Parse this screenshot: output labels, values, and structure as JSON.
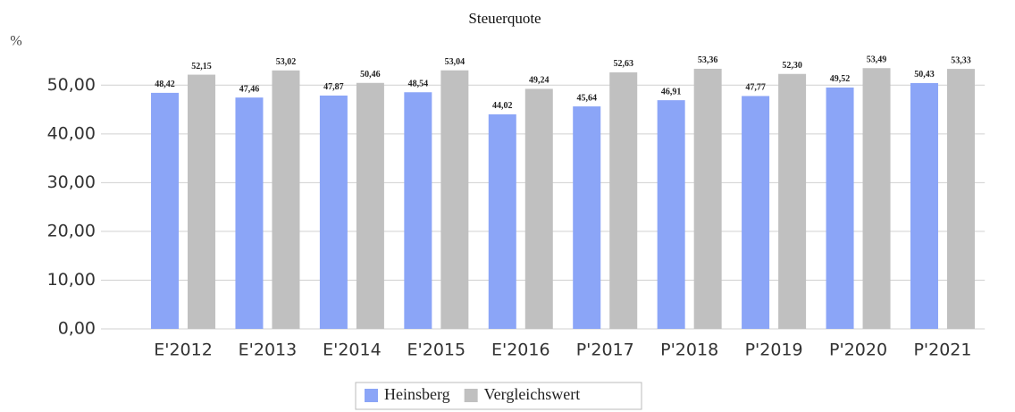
{
  "chart_data": {
    "type": "bar",
    "title": "Steuerquote",
    "y_label": "%",
    "categories": [
      "E'2012",
      "E'2013",
      "E'2014",
      "E'2015",
      "E'2016",
      "P'2017",
      "P'2018",
      "P'2019",
      "P'2020",
      "P'2021"
    ],
    "series": [
      {
        "name": "Heinsberg",
        "color": "#8ba5f7",
        "values": [
          48.42,
          47.46,
          47.87,
          48.54,
          44.02,
          45.64,
          46.91,
          47.77,
          49.52,
          50.43
        ],
        "value_labels": [
          "48,42",
          "47,46",
          "47,87",
          "48,54",
          "44,02",
          "45,64",
          "46,91",
          "47,77",
          "49,52",
          "50,43"
        ]
      },
      {
        "name": "Vergleichswert",
        "color": "#c0c0c0",
        "values": [
          52.15,
          53.02,
          50.46,
          53.04,
          49.24,
          52.63,
          53.36,
          52.3,
          53.49,
          53.33
        ],
        "value_labels": [
          "52,15",
          "53,02",
          "50,46",
          "53,04",
          "49,24",
          "52,63",
          "53,36",
          "52,30",
          "53,49",
          "53,33"
        ]
      }
    ],
    "ylim": [
      0,
      55
    ],
    "yticks": [
      {
        "value": 0,
        "label": "0,00"
      },
      {
        "value": 10,
        "label": "10,00"
      },
      {
        "value": 20,
        "label": "20,00"
      },
      {
        "value": 30,
        "label": "30,00"
      },
      {
        "value": 40,
        "label": "40,00"
      },
      {
        "value": 50,
        "label": "50,00"
      }
    ],
    "grid": true,
    "legend": "bottom"
  }
}
